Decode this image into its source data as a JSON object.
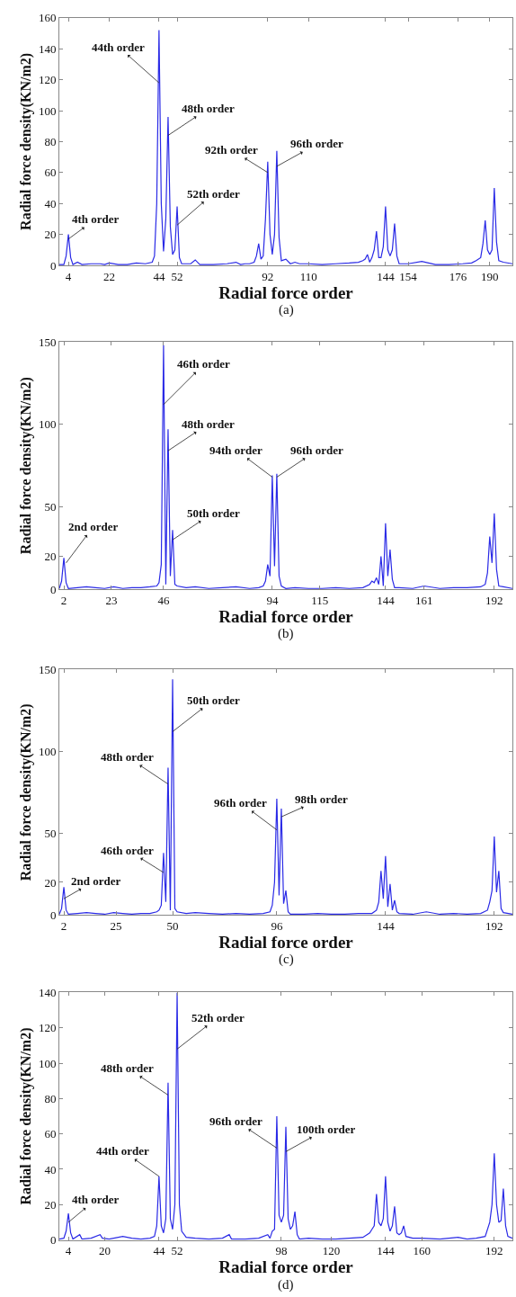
{
  "chart_data": [
    {
      "type": "line",
      "xlabel": "Radial force order",
      "ylabel": "Radial force density(KN/m2)",
      "xlim": [
        0,
        200
      ],
      "xticks": [
        4,
        22,
        44,
        52,
        92,
        110,
        144,
        154,
        176,
        190
      ],
      "ylim": [
        0,
        160
      ],
      "yticks": [
        0,
        20,
        40,
        60,
        80,
        100,
        120,
        140,
        160
      ],
      "series": [
        {
          "color": "#2a2ae6",
          "x": [
            0,
            2,
            3,
            4,
            5,
            6,
            8,
            10,
            14,
            18,
            20,
            22,
            26,
            30,
            34,
            38,
            41,
            42,
            43,
            44,
            45,
            46,
            47,
            48,
            49,
            50,
            51,
            52,
            53,
            54,
            58,
            60,
            62,
            68,
            74,
            78,
            80,
            82,
            84,
            86,
            87,
            88,
            89,
            90,
            91,
            92,
            93,
            94,
            95,
            96,
            97,
            98,
            100,
            102,
            104,
            106,
            110,
            116,
            122,
            128,
            132,
            134,
            135,
            136,
            137,
            138,
            139,
            140,
            141,
            142,
            143,
            144,
            145,
            146,
            147,
            148,
            149,
            150,
            154,
            160,
            166,
            172,
            178,
            182,
            184,
            186,
            187,
            188,
            189,
            190,
            191,
            192,
            193,
            194,
            196,
            200
          ],
          "values": [
            0.5,
            0.5,
            6,
            20,
            5,
            0.5,
            2,
            0.5,
            1,
            1,
            0.5,
            1.5,
            0.5,
            0.5,
            1.5,
            1,
            2,
            6,
            40,
            152,
            40,
            9,
            30,
            96,
            25,
            7,
            10,
            38,
            5,
            1,
            1,
            3.5,
            0.5,
            0.5,
            1,
            2,
            0.5,
            1,
            1,
            2,
            6,
            14,
            4,
            6,
            30,
            67,
            20,
            7,
            20,
            74,
            18,
            3,
            4,
            1,
            2,
            1,
            1,
            0.5,
            1,
            1.5,
            2,
            3,
            4,
            7,
            2,
            5,
            10,
            22,
            5,
            5,
            12,
            38,
            10,
            6,
            10,
            27,
            6,
            1,
            1,
            2.5,
            0.5,
            0.5,
            1,
            1.5,
            3,
            5,
            14,
            29,
            10,
            7,
            10,
            50,
            15,
            3,
            2,
            1
          ]
        }
      ],
      "annotations": [
        {
          "text": "4th order",
          "x": 4,
          "y": 17
        },
        {
          "text": "44th order",
          "x": 44,
          "y": 118
        },
        {
          "text": "48th order",
          "x": 48,
          "y": 84
        },
        {
          "text": "52th order",
          "x": 52,
          "y": 26
        },
        {
          "text": "92th order",
          "x": 92,
          "y": 60
        },
        {
          "text": "96th order",
          "x": 96,
          "y": 64
        },
        "(a)"
      ]
    },
    {
      "type": "line",
      "xlabel": "Radial force order",
      "ylabel": "Radial force density(KN/m2)",
      "xlim": [
        0,
        200
      ],
      "xticks": [
        2,
        23,
        46,
        94,
        115,
        144,
        161,
        192
      ],
      "ylim": [
        0,
        150
      ],
      "yticks": [
        0,
        20,
        50,
        100,
        150
      ],
      "series": [
        {
          "color": "#2a2ae6",
          "x": [
            0,
            1,
            2,
            3,
            4,
            8,
            12,
            16,
            20,
            24,
            28,
            32,
            36,
            40,
            43,
            44,
            45,
            46,
            47,
            48,
            49,
            50,
            51,
            52,
            56,
            60,
            66,
            72,
            78,
            84,
            88,
            90,
            91,
            92,
            93,
            94,
            95,
            96,
            97,
            98,
            100,
            104,
            110,
            116,
            122,
            128,
            134,
            137,
            138,
            139,
            140,
            141,
            142,
            143,
            144,
            145,
            146,
            147,
            148,
            150,
            156,
            161,
            168,
            174,
            180,
            186,
            188,
            189,
            190,
            191,
            192,
            193,
            194,
            196,
            200
          ],
          "values": [
            0.5,
            5,
            19,
            4,
            0.5,
            1,
            1.5,
            1,
            0.5,
            1.5,
            0.5,
            1,
            1,
            1.5,
            2,
            4,
            15,
            148,
            3,
            97,
            8,
            36,
            3,
            2,
            1,
            1.5,
            0.5,
            1,
            1.5,
            0.5,
            1,
            2,
            5,
            15,
            8,
            69,
            14,
            70,
            8,
            2,
            0.5,
            1,
            0.5,
            0.5,
            1,
            0.5,
            1,
            3,
            5,
            4,
            7,
            3,
            20,
            2,
            40,
            8,
            24,
            6,
            1,
            1,
            0.5,
            2,
            0.5,
            1,
            1,
            1.5,
            3,
            10,
            32,
            16,
            46,
            12,
            2,
            1.5,
            0.5
          ]
        }
      ],
      "annotations": [
        {
          "text": "2nd order",
          "x": 3,
          "y": 16
        },
        {
          "text": "46th order",
          "x": 46,
          "y": 112
        },
        {
          "text": "48th order",
          "x": 48,
          "y": 84
        },
        {
          "text": "50th order",
          "x": 50,
          "y": 30
        },
        {
          "text": "94th order",
          "x": 94,
          "y": 68
        },
        {
          "text": "96th order",
          "x": 96,
          "y": 68
        },
        "(b)"
      ]
    },
    {
      "type": "line",
      "xlabel": "Radial force order",
      "ylabel": "Radial force density(KN/m2)",
      "xlim": [
        0,
        200
      ],
      "xticks": [
        2,
        25,
        50,
        96,
        144,
        192
      ],
      "ylim": [
        0,
        150
      ],
      "yticks": [
        0,
        20,
        50,
        100,
        150
      ],
      "series": [
        {
          "color": "#2a2ae6",
          "x": [
            0,
            1,
            2,
            3,
            4,
            8,
            12,
            16,
            20,
            24,
            28,
            32,
            36,
            40,
            43,
            44,
            45,
            46,
            47,
            48,
            49,
            50,
            51,
            52,
            56,
            60,
            66,
            72,
            78,
            84,
            90,
            93,
            94,
            95,
            96,
            97,
            98,
            99,
            100,
            101,
            102,
            108,
            114,
            120,
            126,
            132,
            138,
            140,
            141,
            142,
            143,
            144,
            145,
            146,
            147,
            148,
            149,
            150,
            156,
            162,
            168,
            174,
            180,
            186,
            189,
            190,
            191,
            192,
            193,
            194,
            195,
            196,
            200
          ],
          "values": [
            0.5,
            4,
            17,
            3,
            0.5,
            1,
            1.5,
            1,
            0.5,
            1.5,
            1,
            0.5,
            1,
            1,
            2,
            3,
            6,
            38,
            8,
            90,
            3,
            144,
            4,
            2,
            1,
            1.5,
            1,
            0.5,
            1,
            0.5,
            1,
            2,
            6,
            20,
            71,
            12,
            65,
            7,
            15,
            2,
            0.5,
            0.5,
            1,
            0.5,
            0.5,
            1,
            1,
            3,
            8,
            27,
            10,
            36,
            5,
            19,
            3,
            9,
            2,
            1,
            0.5,
            2,
            0.5,
            1,
            0.5,
            1,
            3,
            8,
            15,
            48,
            14,
            27,
            4,
            1.5,
            0.5
          ]
        }
      ],
      "annotations": [
        {
          "text": "2nd order",
          "x": 2,
          "y": 10
        },
        {
          "text": "46th order",
          "x": 46,
          "y": 26
        },
        {
          "text": "48th order",
          "x": 48,
          "y": 80
        },
        {
          "text": "50th order",
          "x": 50,
          "y": 112
        },
        {
          "text": "96th order",
          "x": 96,
          "y": 52
        },
        {
          "text": "98th order",
          "x": 98,
          "y": 60
        },
        "(c)"
      ]
    },
    {
      "type": "line",
      "xlabel": "Radial force order",
      "ylabel": "Radial force density(KN/m2)",
      "xlim": [
        0,
        200
      ],
      "xticks": [
        4,
        20,
        44,
        52,
        98,
        120,
        144,
        160,
        192
      ],
      "ylim": [
        0,
        140
      ],
      "yticks": [
        0,
        20,
        40,
        60,
        80,
        100,
        120,
        140
      ],
      "series": [
        {
          "color": "#2a2ae6",
          "x": [
            0,
            2,
            3,
            4,
            5,
            6,
            9,
            10,
            14,
            18,
            19,
            22,
            28,
            32,
            36,
            40,
            42,
            43,
            44,
            45,
            46,
            47,
            48,
            49,
            50,
            51,
            52,
            53,
            54,
            56,
            60,
            66,
            72,
            75,
            76,
            82,
            88,
            92,
            93,
            94,
            95,
            96,
            97,
            98,
            99,
            100,
            101,
            102,
            103,
            104,
            105,
            106,
            110,
            116,
            122,
            128,
            134,
            137,
            138,
            139,
            140,
            141,
            142,
            143,
            144,
            145,
            146,
            147,
            148,
            149,
            150,
            151,
            152,
            153,
            156,
            160,
            168,
            172,
            176,
            180,
            184,
            188,
            190,
            191,
            192,
            193,
            194,
            195,
            196,
            197,
            198,
            200
          ],
          "values": [
            0.5,
            1,
            5,
            15,
            4,
            0.5,
            3,
            0.5,
            1,
            3,
            1,
            0.5,
            2,
            1,
            0.5,
            1,
            2,
            8,
            36,
            8,
            4,
            12,
            89,
            12,
            6,
            20,
            140,
            20,
            5,
            1.5,
            1,
            0.5,
            1,
            3,
            0.5,
            0.5,
            1,
            3,
            1,
            5,
            6,
            70,
            14,
            10,
            14,
            64,
            12,
            6,
            8,
            16,
            3,
            0.5,
            1,
            0.5,
            0.5,
            1,
            1.5,
            4,
            6,
            8,
            26,
            10,
            8,
            12,
            36,
            10,
            5,
            8,
            19,
            4,
            3,
            4,
            8,
            2,
            1,
            1,
            0.5,
            1,
            1.5,
            0.5,
            1,
            2,
            10,
            20,
            49,
            20,
            10,
            11,
            29,
            8,
            2,
            1
          ]
        }
      ],
      "annotations": [
        {
          "text": "4th order",
          "x": 4,
          "y": 10
        },
        {
          "text": "44th order",
          "x": 44,
          "y": 36
        },
        {
          "text": "48th order",
          "x": 48,
          "y": 82
        },
        {
          "text": "52th order",
          "x": 52,
          "y": 108
        },
        {
          "text": "96th order",
          "x": 96,
          "y": 52
        },
        {
          "text": "100th order",
          "x": 100,
          "y": 50
        },
        "(d)"
      ]
    }
  ]
}
